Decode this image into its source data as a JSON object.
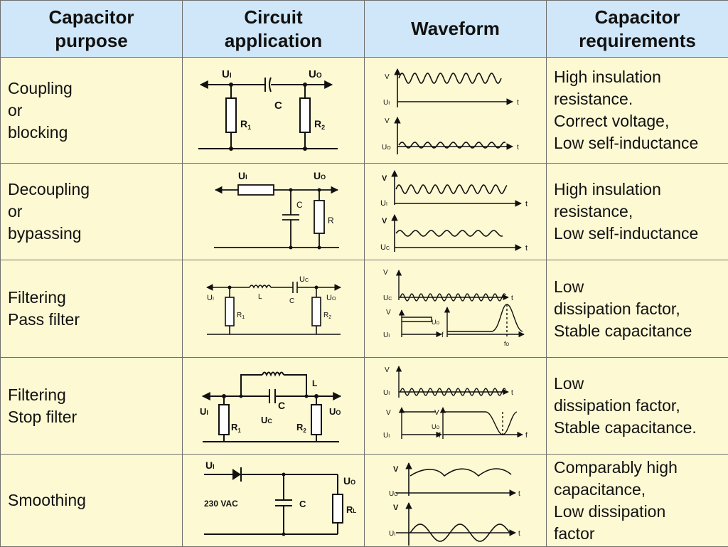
{
  "headers": [
    [
      "Capacitor",
      "purpose"
    ],
    [
      "Circuit",
      "application"
    ],
    [
      "Waveform"
    ],
    [
      "Capacitor",
      "requirements"
    ]
  ],
  "rows": [
    {
      "purpose": [
        "Coupling",
        "or",
        "blocking"
      ],
      "circuit": {
        "u_in": "U",
        "u_in_sub": "I",
        "u_out": "U",
        "u_out_sub": "O",
        "c": "C",
        "r1": "R",
        "r1_sub": "1",
        "r2": "R",
        "r2_sub": "2"
      },
      "waveform": {
        "v1": "V",
        "u1": "U",
        "u1_sub": "I",
        "t1": "t",
        "v2": "V",
        "u2": "U",
        "u2_sub": "O",
        "t2": "t"
      },
      "requirements": [
        "High insulation",
        "resistance.",
        "Correct voltage,",
        "Low self-inductance"
      ]
    },
    {
      "purpose": [
        "Decoupling",
        "or",
        "bypassing"
      ],
      "circuit": {
        "u_in": "U",
        "u_in_sub": "I",
        "u_out": "U",
        "u_out_sub": "O",
        "c": "C",
        "r": "R"
      },
      "waveform": {
        "v1": "V",
        "u1": "U",
        "u1_sub": "I",
        "t1": "t",
        "v2": "V",
        "u2": "U",
        "u2_sub": "C",
        "t2": "t"
      },
      "requirements": [
        "High insulation",
        "resistance,",
        "Low self-inductance"
      ]
    },
    {
      "purpose": [
        "Filtering",
        "Pass filter"
      ],
      "circuit": {
        "u_in": "U",
        "u_in_sub": "I",
        "u_out": "U",
        "u_out_sub": "O",
        "uc": "U",
        "uc_sub": "C",
        "l": "L",
        "c": "C",
        "r1": "R",
        "r1_sub": "1",
        "r2": "R",
        "r2_sub": "2"
      },
      "waveform": {
        "v1": "V",
        "uc": "U",
        "uc_sub": "C",
        "t1": "t",
        "v2": "V",
        "uo": "U",
        "uo_sub": "O",
        "u1": "U",
        "u1_sub": "I",
        "f": "f",
        "fo": "f",
        "fo_sub": "O"
      },
      "requirements": [
        "Low",
        "dissipation factor,",
        "Stable capacitance"
      ]
    },
    {
      "purpose": [
        "Filtering",
        "Stop filter"
      ],
      "circuit": {
        "u_in": "U",
        "u_in_sub": "I",
        "u_out": "U",
        "u_out_sub": "O",
        "uc": "U",
        "uc_sub": "C",
        "l": "L",
        "c": "C",
        "r1": "R",
        "r1_sub": "1",
        "r2": "R",
        "r2_sub": "2"
      },
      "waveform": {
        "v1": "V",
        "u1": "U",
        "u1_sub": "I",
        "t1": "t",
        "v2": "V",
        "v3": "V",
        "uo": "U",
        "uo_sub": "O",
        "u2": "U",
        "u2_sub": "I",
        "f1": "f",
        "f2": "f"
      },
      "requirements": [
        "Low",
        "dissipation factor,",
        "Stable capacitance."
      ]
    },
    {
      "purpose": [
        "Smoothing"
      ],
      "circuit": {
        "u_in": "U",
        "u_in_sub": "I",
        "u_out": "U",
        "u_out_sub": "O",
        "vac": "230 VAC",
        "c": "C",
        "rl": "R",
        "rl_sub": "L"
      },
      "waveform": {
        "v1": "V",
        "u1": "U",
        "u1_sub": "O",
        "t1": "t",
        "v2": "V",
        "u2": "U",
        "u2_sub": "I",
        "t2": "t"
      },
      "requirements": [
        "Comparably high",
        "capacitance,",
        "Low dissipation",
        "factor"
      ]
    }
  ],
  "colors": {
    "header_bg": "#cfe7f9",
    "cell_bg": "#fdf9d3",
    "border": "#6f6f6f",
    "ink": "#111111"
  }
}
